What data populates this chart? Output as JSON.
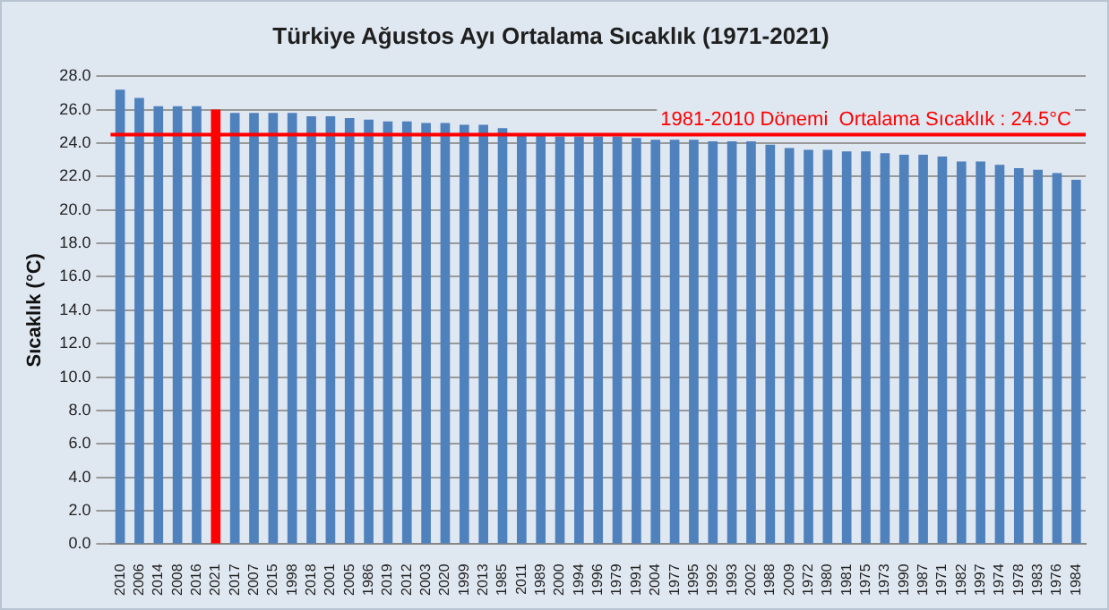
{
  "chart_data": {
    "type": "bar",
    "title": "Türkiye Ağustos Ayı Ortalama Sıcaklık (1971-2021)",
    "ylabel": "Sıcaklık (°C)",
    "categories": [
      "2010",
      "2006",
      "2014",
      "2008",
      "2016",
      "2021",
      "2017",
      "2007",
      "2015",
      "1998",
      "2018",
      "2001",
      "2005",
      "1986",
      "2019",
      "2012",
      "2003",
      "2020",
      "1999",
      "2013",
      "1985",
      "2011",
      "1989",
      "2000",
      "1994",
      "1996",
      "1979",
      "1991",
      "2004",
      "1977",
      "1995",
      "1992",
      "1993",
      "2002",
      "1988",
      "2009",
      "1972",
      "1980",
      "1981",
      "1975",
      "1973",
      "1990",
      "1987",
      "1971",
      "1982",
      "1997",
      "1974",
      "1978",
      "1983",
      "1976",
      "1984"
    ],
    "values": [
      27.2,
      26.7,
      26.2,
      26.2,
      26.2,
      26.0,
      25.8,
      25.8,
      25.8,
      25.8,
      25.6,
      25.6,
      25.5,
      25.4,
      25.3,
      25.3,
      25.2,
      25.2,
      25.1,
      25.1,
      24.9,
      24.5,
      24.5,
      24.4,
      24.4,
      24.4,
      24.4,
      24.3,
      24.2,
      24.2,
      24.2,
      24.1,
      24.1,
      24.1,
      23.9,
      23.7,
      23.6,
      23.6,
      23.5,
      23.5,
      23.4,
      23.3,
      23.3,
      23.2,
      22.9,
      22.9,
      22.7,
      22.5,
      22.4,
      22.2,
      21.8
    ],
    "colors": [
      "#4f81bd",
      "#4f81bd",
      "#4f81bd",
      "#4f81bd",
      "#4f81bd",
      "#ff0000",
      "#4f81bd",
      "#4f81bd",
      "#4f81bd",
      "#4f81bd",
      "#4f81bd",
      "#4f81bd",
      "#4f81bd",
      "#4f81bd",
      "#4f81bd",
      "#4f81bd",
      "#4f81bd",
      "#4f81bd",
      "#4f81bd",
      "#4f81bd",
      "#4f81bd",
      "#4f81bd",
      "#4f81bd",
      "#4f81bd",
      "#4f81bd",
      "#4f81bd",
      "#4f81bd",
      "#4f81bd",
      "#4f81bd",
      "#4f81bd",
      "#4f81bd",
      "#4f81bd",
      "#4f81bd",
      "#4f81bd",
      "#4f81bd",
      "#4f81bd",
      "#4f81bd",
      "#4f81bd",
      "#4f81bd",
      "#4f81bd",
      "#4f81bd",
      "#4f81bd",
      "#4f81bd",
      "#4f81bd",
      "#4f81bd",
      "#4f81bd",
      "#4f81bd",
      "#4f81bd",
      "#4f81bd",
      "#4f81bd",
      "#4f81bd"
    ],
    "ylim": [
      0,
      28
    ],
    "yticks": [
      {
        "value": 0,
        "label": "0.0"
      },
      {
        "value": 2,
        "label": "2.0"
      },
      {
        "value": 4,
        "label": "4.0"
      },
      {
        "value": 6,
        "label": "6.0"
      },
      {
        "value": 8,
        "label": "8.0"
      },
      {
        "value": 10,
        "label": "10.0"
      },
      {
        "value": 12,
        "label": "12.0"
      },
      {
        "value": 14,
        "label": "14.0"
      },
      {
        "value": 16,
        "label": "16.0"
      },
      {
        "value": 18,
        "label": "18.0"
      },
      {
        "value": 20,
        "label": "20.0"
      },
      {
        "value": 22,
        "label": "22.0"
      },
      {
        "value": 24,
        "label": "24.0"
      },
      {
        "value": 26,
        "label": "26.0"
      },
      {
        "value": 28,
        "label": "28.0"
      }
    ],
    "grid": "y",
    "legend": false,
    "ref_lines": [
      {
        "axis": "y",
        "value": 24.5,
        "label": "1981-2010 Dönemi  Ortalama Sıcaklık : 24.5°C",
        "color": "#ff0000"
      }
    ]
  }
}
